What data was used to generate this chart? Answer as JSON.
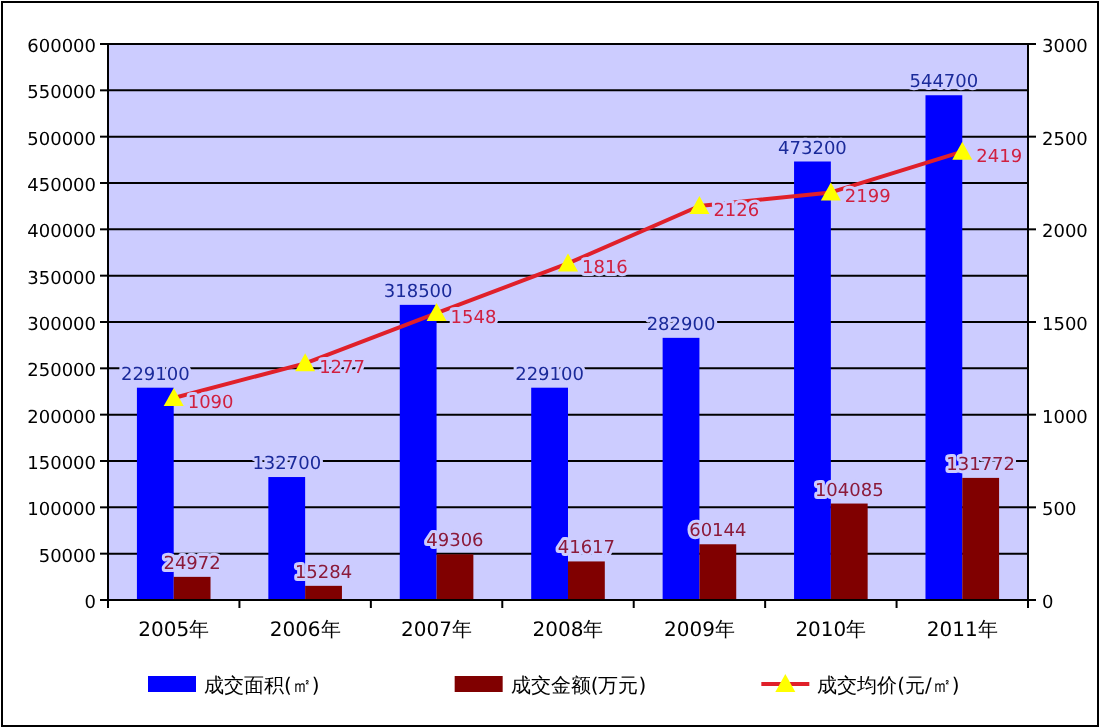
{
  "chart_data": {
    "type": "bar",
    "categories": [
      "2005年",
      "2006年",
      "2007年",
      "2008年",
      "2009年",
      "2010年",
      "2011年"
    ],
    "series": [
      {
        "name": "成交面积(㎡)",
        "color": "#0000ff",
        "values": [
          229100,
          132700,
          318500,
          229100,
          282900,
          473200,
          544700
        ]
      },
      {
        "name": "成交金额(万元)",
        "color": "#800000",
        "values": [
          24972,
          15284,
          49306,
          41617,
          60144,
          104085,
          131772
        ]
      },
      {
        "name": "成交均价(元/㎡)",
        "type": "line",
        "axis": "y2",
        "color": "#e0202a",
        "values": [
          1090,
          1277,
          1548,
          1816,
          2126,
          2199,
          2419
        ]
      }
    ],
    "ylim": [
      0,
      600000
    ],
    "yticks": [
      0,
      50000,
      100000,
      150000,
      200000,
      250000,
      300000,
      350000,
      400000,
      450000,
      500000,
      550000,
      600000
    ],
    "y2lim": [
      0,
      3000
    ],
    "y2ticks": [
      0,
      500,
      1000,
      1500,
      2000,
      2500,
      3000
    ],
    "grid": "y",
    "legend": "bottom",
    "marker": "triangle",
    "data_labels": true
  }
}
